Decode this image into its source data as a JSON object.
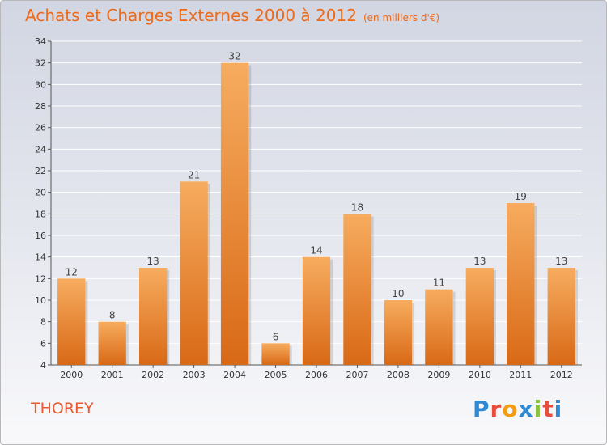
{
  "header": {
    "title": "Achats et Charges Externes 2000 à 2012",
    "subtitle": "(en milliers d'€)"
  },
  "commune": "THOREY",
  "logo": {
    "text": "Proxiti",
    "letters": [
      "P",
      "r",
      "o",
      "x",
      "i",
      "t",
      "i"
    ],
    "colors": [
      "#2f8ad6",
      "#e74c3c",
      "#f39c12",
      "#2f8ad6",
      "#8ac23b",
      "#e74c3c",
      "#2f8ad6"
    ]
  },
  "colors": {
    "accent": "#ec6a1a",
    "bar_top": "#f7ac5f",
    "bar_bottom": "#d86916"
  },
  "chart_data": {
    "type": "bar",
    "title": "Achats et Charges Externes 2000 à 2012",
    "subtitle": "(en milliers d'€)",
    "categories": [
      "2000",
      "2001",
      "2002",
      "2003",
      "2004",
      "2005",
      "2006",
      "2007",
      "2008",
      "2009",
      "2010",
      "2011",
      "2012"
    ],
    "values": [
      12,
      8,
      13,
      21,
      32,
      6,
      14,
      18,
      10,
      11,
      13,
      19,
      13
    ],
    "ylim": [
      4,
      34
    ],
    "yticks": [
      4,
      6,
      8,
      10,
      12,
      14,
      16,
      18,
      20,
      22,
      24,
      26,
      28,
      30,
      32,
      34
    ],
    "grid": true,
    "data_labels": true
  }
}
